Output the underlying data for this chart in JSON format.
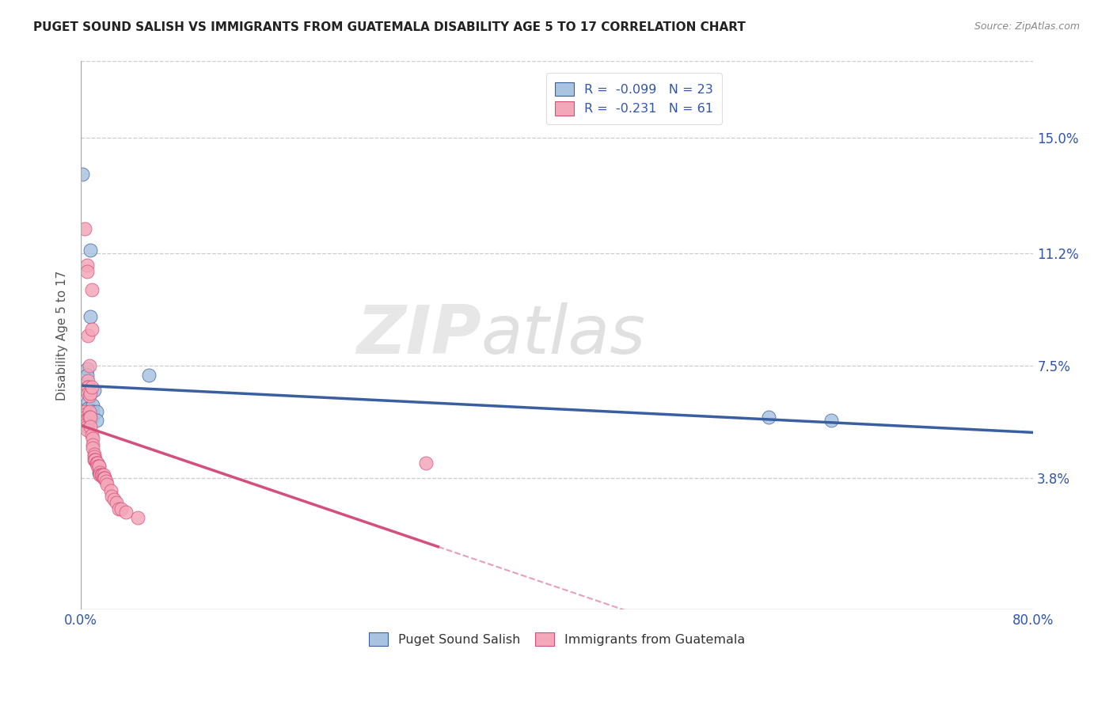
{
  "title": "PUGET SOUND SALISH VS IMMIGRANTS FROM GUATEMALA DISABILITY AGE 5 TO 17 CORRELATION CHART",
  "source": "Source: ZipAtlas.com",
  "ylabel": "Disability Age 5 to 17",
  "xlim": [
    0.0,
    0.8
  ],
  "ylim": [
    -0.005,
    0.175
  ],
  "xtick_positions": [
    0.0,
    0.1,
    0.2,
    0.3,
    0.4,
    0.5,
    0.6,
    0.7,
    0.8
  ],
  "xticklabels": [
    "0.0%",
    "",
    "",
    "",
    "",
    "",
    "",
    "",
    "80.0%"
  ],
  "ytick_values": [
    0.038,
    0.075,
    0.112,
    0.15
  ],
  "ytick_labels": [
    "3.8%",
    "7.5%",
    "11.2%",
    "15.0%"
  ],
  "legend_label1": "Puget Sound Salish",
  "legend_label2": "Immigrants from Guatemala",
  "R1": -0.099,
  "N1": 23,
  "R2": -0.231,
  "N2": 61,
  "color1": "#a8c4e0",
  "color2": "#f4a7b9",
  "line_color1": "#3a5fa0",
  "line_color2": "#d44f7a",
  "watermark_zip": "ZIP",
  "watermark_atlas": "atlas",
  "blue_scatter": [
    [
      0.0015,
      0.138
    ],
    [
      0.005,
      0.074
    ],
    [
      0.005,
      0.072
    ],
    [
      0.006,
      0.063
    ],
    [
      0.006,
      0.061
    ],
    [
      0.007,
      0.067
    ],
    [
      0.007,
      0.06
    ],
    [
      0.008,
      0.091
    ],
    [
      0.008,
      0.06
    ],
    [
      0.008,
      0.057
    ],
    [
      0.008,
      0.113
    ],
    [
      0.009,
      0.06
    ],
    [
      0.01,
      0.062
    ],
    [
      0.01,
      0.06
    ],
    [
      0.01,
      0.058
    ],
    [
      0.011,
      0.067
    ],
    [
      0.013,
      0.06
    ],
    [
      0.013,
      0.057
    ],
    [
      0.015,
      0.04
    ],
    [
      0.016,
      0.04
    ],
    [
      0.057,
      0.072
    ],
    [
      0.578,
      0.058
    ],
    [
      0.63,
      0.057
    ]
  ],
  "pink_scatter": [
    [
      0.003,
      0.06
    ],
    [
      0.003,
      0.059
    ],
    [
      0.003,
      0.12
    ],
    [
      0.004,
      0.058
    ],
    [
      0.004,
      0.057
    ],
    [
      0.004,
      0.057
    ],
    [
      0.005,
      0.057
    ],
    [
      0.005,
      0.056
    ],
    [
      0.005,
      0.055
    ],
    [
      0.005,
      0.054
    ],
    [
      0.005,
      0.108
    ],
    [
      0.005,
      0.106
    ],
    [
      0.006,
      0.085
    ],
    [
      0.006,
      0.07
    ],
    [
      0.006,
      0.068
    ],
    [
      0.006,
      0.068
    ],
    [
      0.006,
      0.066
    ],
    [
      0.007,
      0.065
    ],
    [
      0.007,
      0.06
    ],
    [
      0.007,
      0.058
    ],
    [
      0.007,
      0.075
    ],
    [
      0.008,
      0.066
    ],
    [
      0.008,
      0.058
    ],
    [
      0.008,
      0.055
    ],
    [
      0.009,
      0.068
    ],
    [
      0.009,
      0.1
    ],
    [
      0.009,
      0.052
    ],
    [
      0.009,
      0.087
    ],
    [
      0.01,
      0.051
    ],
    [
      0.01,
      0.049
    ],
    [
      0.01,
      0.048
    ],
    [
      0.011,
      0.046
    ],
    [
      0.011,
      0.045
    ],
    [
      0.011,
      0.044
    ],
    [
      0.012,
      0.044
    ],
    [
      0.012,
      0.044
    ],
    [
      0.013,
      0.043
    ],
    [
      0.013,
      0.043
    ],
    [
      0.014,
      0.043
    ],
    [
      0.014,
      0.042
    ],
    [
      0.015,
      0.042
    ],
    [
      0.015,
      0.042
    ],
    [
      0.016,
      0.04
    ],
    [
      0.016,
      0.039
    ],
    [
      0.017,
      0.039
    ],
    [
      0.018,
      0.039
    ],
    [
      0.019,
      0.039
    ],
    [
      0.019,
      0.038
    ],
    [
      0.02,
      0.038
    ],
    [
      0.02,
      0.038
    ],
    [
      0.021,
      0.037
    ],
    [
      0.022,
      0.036
    ],
    [
      0.025,
      0.034
    ],
    [
      0.026,
      0.032
    ],
    [
      0.028,
      0.031
    ],
    [
      0.03,
      0.03
    ],
    [
      0.032,
      0.028
    ],
    [
      0.034,
      0.028
    ],
    [
      0.038,
      0.027
    ],
    [
      0.048,
      0.025
    ],
    [
      0.29,
      0.043
    ]
  ],
  "reg_line1_x": [
    0.0,
    0.8
  ],
  "reg_line1_y": [
    0.0705,
    0.058
  ],
  "reg_line2_x": [
    0.0,
    0.8
  ],
  "reg_line2_y": [
    0.063,
    -0.008
  ],
  "reg_line2_solid_end_x": 0.3
}
